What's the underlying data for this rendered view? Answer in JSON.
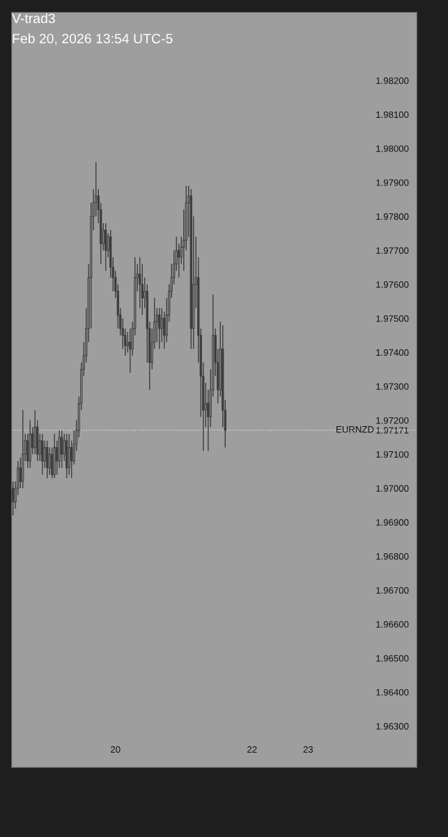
{
  "chart_data": {
    "type": "candlestick",
    "title": "V-trad3",
    "subtitle": "Feb 20, 2026 13:54 UTC-5",
    "categories": [
      null,
      null,
      null,
      null,
      null,
      null,
      null,
      null,
      null,
      null,
      null,
      null,
      null,
      null,
      null,
      null,
      null,
      null,
      null,
      null,
      null,
      null,
      null,
      null,
      null,
      null,
      null,
      null,
      null,
      null,
      null,
      null,
      null,
      null,
      null,
      null,
      null,
      null,
      null,
      null,
      null,
      null,
      "20",
      null,
      null,
      null,
      null,
      null,
      null,
      null,
      null,
      null,
      null,
      null,
      null,
      null,
      null,
      null,
      null,
      null,
      null,
      null,
      null,
      null,
      null,
      null,
      null,
      null,
      null,
      null,
      null,
      null,
      null,
      null,
      null,
      null,
      null,
      null,
      null,
      null,
      null,
      null,
      null,
      null,
      null,
      null,
      null,
      null,
      null,
      null,
      null,
      null,
      null,
      null,
      null,
      null,
      null,
      null,
      "22",
      null,
      null,
      null,
      null,
      null,
      null,
      null,
      null,
      null,
      null,
      null,
      null,
      null,
      null,
      null,
      null,
      null,
      null,
      null,
      null,
      null,
      null,
      "23",
      null,
      null,
      null,
      null,
      null,
      null,
      null,
      null,
      null,
      null,
      null,
      null,
      null,
      null,
      null,
      null,
      null,
      null,
      null,
      null,
      null,
      null,
      null,
      null,
      null,
      null,
      null,
      null,
      null,
      null,
      null,
      null,
      null,
      null,
      null,
      null,
      null,
      null,
      null,
      null,
      null,
      null,
      null,
      null
    ],
    "series": [
      {
        "color": "#3c3c3c",
        "ohlc": [
          [
            1.97,
            1.9702,
            1.9692,
            1.9696
          ],
          [
            1.9696,
            1.9702,
            1.9694,
            1.97
          ],
          [
            1.97,
            1.9708,
            1.9698,
            1.9706
          ],
          [
            1.9706,
            1.9709,
            1.97,
            1.9702
          ],
          [
            1.9702,
            1.9723,
            1.97,
            1.971
          ],
          [
            1.971,
            1.9716,
            1.9708,
            1.9714
          ],
          [
            1.9714,
            1.9716,
            1.9706,
            1.9708
          ],
          [
            1.9708,
            1.972,
            1.9706,
            1.9716
          ],
          [
            1.9716,
            1.9718,
            1.971,
            1.9712
          ],
          [
            1.9712,
            1.9723,
            1.971,
            1.9718
          ],
          [
            1.9718,
            1.972,
            1.9708,
            1.971
          ],
          [
            1.971,
            1.9716,
            1.9708,
            1.9714
          ],
          [
            1.9714,
            1.9716,
            1.9704,
            1.9708
          ],
          [
            1.9708,
            1.9714,
            1.9706,
            1.9712
          ],
          [
            1.9712,
            1.9714,
            1.9703,
            1.9706
          ],
          [
            1.9706,
            1.9712,
            1.9704,
            1.971
          ],
          [
            1.971,
            1.9712,
            1.9703,
            1.9704
          ],
          [
            1.9704,
            1.9716,
            1.9703,
            1.9712
          ],
          [
            1.9712,
            1.9714,
            1.9704,
            1.9708
          ],
          [
            1.9708,
            1.9717,
            1.9706,
            1.9715
          ],
          [
            1.9715,
            1.9717,
            1.9706,
            1.971
          ],
          [
            1.971,
            1.9716,
            1.9708,
            1.9714
          ],
          [
            1.9714,
            1.9716,
            1.9703,
            1.9706
          ],
          [
            1.9706,
            1.9716,
            1.9704,
            1.9712
          ],
          [
            1.9712,
            1.9714,
            1.9703,
            1.9708
          ],
          [
            1.9708,
            1.9717,
            1.9707,
            1.9713
          ],
          [
            1.9713,
            1.972,
            1.9711,
            1.9717
          ],
          [
            1.9717,
            1.9727,
            1.9715,
            1.9725
          ],
          [
            1.9725,
            1.9737,
            1.9723,
            1.9735
          ],
          [
            1.9735,
            1.9743,
            1.9733,
            1.9739
          ],
          [
            1.9739,
            1.9753,
            1.9737,
            1.9747
          ],
          [
            1.9747,
            1.9766,
            1.9743,
            1.9762
          ],
          [
            1.9762,
            1.9784,
            1.9747,
            1.978
          ],
          [
            1.978,
            1.9788,
            1.9776,
            1.9784
          ],
          [
            1.9784,
            1.9796,
            1.978,
            1.9786
          ],
          [
            1.9786,
            1.9788,
            1.9778,
            1.9782
          ],
          [
            1.9782,
            1.9784,
            1.9766,
            1.9772
          ],
          [
            1.9772,
            1.9778,
            1.977,
            1.9776
          ],
          [
            1.9776,
            1.9778,
            1.9764,
            1.977
          ],
          [
            1.977,
            1.9775,
            1.9768,
            1.9774
          ],
          [
            1.9774,
            1.9776,
            1.9762,
            1.9765
          ],
          [
            1.9765,
            1.9768,
            1.9758,
            1.9762
          ],
          [
            1.9762,
            1.9764,
            1.9756,
            1.9758
          ],
          [
            1.9758,
            1.976,
            1.9747,
            1.9751
          ],
          [
            1.9751,
            1.9753,
            1.9745,
            1.9747
          ],
          [
            1.9747,
            1.975,
            1.9741,
            1.9745
          ],
          [
            1.9745,
            1.9747,
            1.9739,
            1.9742
          ],
          [
            1.9742,
            1.9746,
            1.974,
            1.9743
          ],
          [
            1.9743,
            1.9747,
            1.9734,
            1.9741
          ],
          [
            1.9741,
            1.9749,
            1.9739,
            1.9747
          ],
          [
            1.9747,
            1.9768,
            1.9745,
            1.9762
          ],
          [
            1.9762,
            1.9766,
            1.9758,
            1.9763
          ],
          [
            1.9763,
            1.9768,
            1.9753,
            1.976
          ],
          [
            1.976,
            1.9766,
            1.9751,
            1.9756
          ],
          [
            1.9756,
            1.9762,
            1.9753,
            1.9758
          ],
          [
            1.9758,
            1.976,
            1.9737,
            1.9747
          ],
          [
            1.9747,
            1.9749,
            1.9729,
            1.9737
          ],
          [
            1.9737,
            1.9747,
            1.9735,
            1.9743
          ],
          [
            1.9743,
            1.9756,
            1.9741,
            1.9749
          ],
          [
            1.9749,
            1.9753,
            1.9743,
            1.9751
          ],
          [
            1.9751,
            1.9753,
            1.9741,
            1.9747
          ],
          [
            1.9747,
            1.9753,
            1.9743,
            1.975
          ],
          [
            1.975,
            1.9752,
            1.9741,
            1.9745
          ],
          [
            1.9745,
            1.9756,
            1.9743,
            1.9751
          ],
          [
            1.9751,
            1.976,
            1.9749,
            1.9758
          ],
          [
            1.9758,
            1.9766,
            1.9756,
            1.9762
          ],
          [
            1.9762,
            1.977,
            1.976,
            1.9766
          ],
          [
            1.9766,
            1.9774,
            1.9764,
            1.977
          ],
          [
            1.977,
            1.9772,
            1.9762,
            1.9768
          ],
          [
            1.9768,
            1.9774,
            1.9766,
            1.9771
          ],
          [
            1.9771,
            1.9782,
            1.9764,
            1.9773
          ],
          [
            1.9773,
            1.9789,
            1.977,
            1.9784
          ],
          [
            1.9784,
            1.9789,
            1.9774,
            1.9786
          ],
          [
            1.9786,
            1.9788,
            1.9741,
            1.9747
          ],
          [
            1.9747,
            1.978,
            1.9741,
            1.976
          ],
          [
            1.976,
            1.9774,
            1.9753,
            1.9762
          ],
          [
            1.9762,
            1.9768,
            1.9737,
            1.9745
          ],
          [
            1.9745,
            1.9747,
            1.9721,
            1.9733
          ],
          [
            1.9733,
            1.9737,
            1.9711,
            1.9723
          ],
          [
            1.9723,
            1.9731,
            1.9718,
            1.9725
          ],
          [
            1.9725,
            1.9729,
            1.9711,
            1.9721
          ],
          [
            1.9721,
            1.9735,
            1.9718,
            1.9729
          ],
          [
            1.9729,
            1.9757,
            1.9727,
            1.9745
          ],
          [
            1.9745,
            1.9747,
            1.9733,
            1.9737
          ],
          [
            1.9737,
            1.9741,
            1.9725,
            1.9729
          ],
          [
            1.9729,
            1.9749,
            1.9727,
            1.9741
          ],
          [
            1.9741,
            1.9748,
            1.9718,
            1.9723
          ],
          [
            1.9723,
            1.9726,
            1.9712,
            1.97171
          ],
          null,
          null,
          null,
          null,
          null,
          null,
          null,
          null,
          null,
          null,
          null,
          null,
          null,
          null,
          null,
          null,
          null,
          null,
          null,
          null,
          null,
          null,
          null,
          null,
          null,
          null,
          null,
          null,
          null,
          null,
          null,
          null,
          null,
          null,
          null,
          null,
          null,
          null,
          null,
          null,
          null,
          null,
          null,
          null,
          null,
          null,
          null,
          null,
          null,
          null,
          null,
          null,
          null,
          null,
          null,
          null,
          null,
          null,
          null,
          null,
          null,
          null,
          null,
          null,
          null,
          null,
          null,
          null,
          null,
          null,
          null,
          null,
          null,
          null,
          null,
          null,
          null,
          null
        ]
      }
    ],
    "ylim": [
      1.96179,
      1.984
    ],
    "yticks": [
      {
        "value": 1.963,
        "label": "1.96300"
      },
      {
        "value": 1.964,
        "label": "1.96400"
      },
      {
        "value": 1.965,
        "label": "1.96500"
      },
      {
        "value": 1.966,
        "label": "1.96600"
      },
      {
        "value": 1.967,
        "label": "1.96700"
      },
      {
        "value": 1.968,
        "label": "1.96800"
      },
      {
        "value": 1.969,
        "label": "1.96900"
      },
      {
        "value": 1.97,
        "label": "1.97000"
      },
      {
        "value": 1.971,
        "label": "1.97100"
      },
      1.97171,
      {
        "value": 1.972,
        "label": "1.97200"
      },
      {
        "value": 1.973,
        "label": "1.97300"
      },
      {
        "value": 1.974,
        "label": "1.97400"
      },
      {
        "value": 1.975,
        "label": "1.97500"
      },
      {
        "value": 1.976,
        "label": "1.97600"
      },
      {
        "value": 1.977,
        "label": "1.97700"
      },
      {
        "value": 1.978,
        "label": "1.97800"
      },
      {
        "value": 1.979,
        "label": "1.97900"
      },
      {
        "value": 1.98,
        "label": "1.98000"
      },
      {
        "value": 1.981,
        "label": "1.98100"
      },
      {
        "value": 1.982,
        "label": "1.98200"
      }
    ],
    "ref_lines": [
      {
        "axis": "y",
        "value": 1.97171,
        "label": "EURNZD",
        "color": "#d8d8d8",
        "line_style": "dotted"
      }
    ],
    "grid": false,
    "legend": false
  }
}
